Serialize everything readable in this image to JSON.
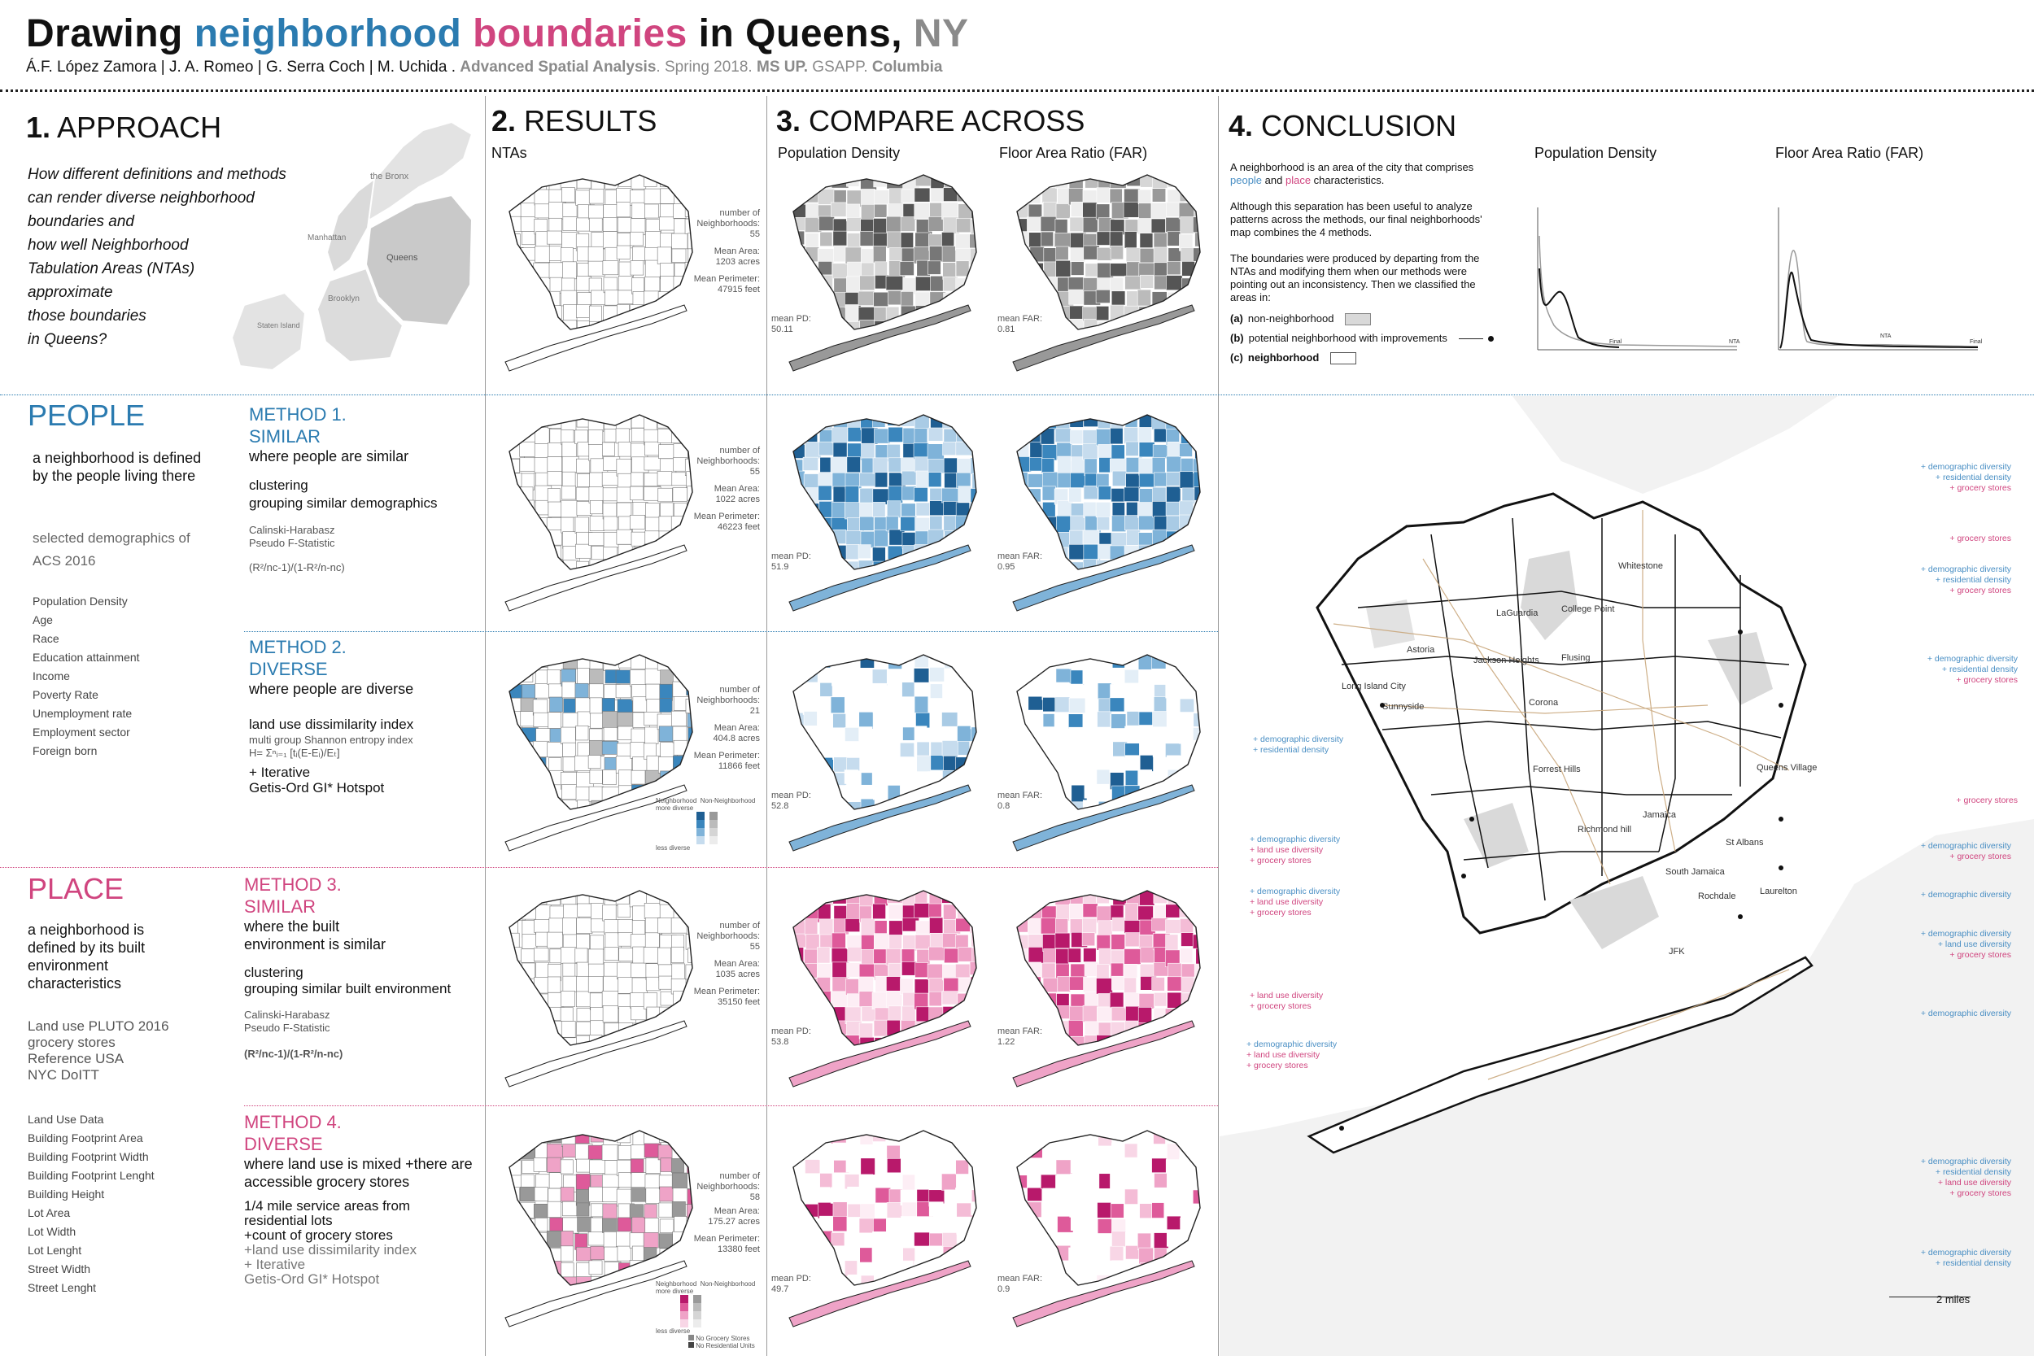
{
  "header": {
    "title_part1": "Drawing ",
    "title_neighborhood": "neighborhood",
    "title_boundaries": "boundaries",
    "title_part2": " in Queens, ",
    "title_ny": "NY",
    "authors": "Á.F. López Zamora | J. A. Romeo | G. Serra Coch | M. Uchida .",
    "course": "Advanced Spatial Analysis",
    "term": ". Spring 2018.",
    "program": "MS UP.",
    "school": "GSAPP.",
    "university": "Columbia"
  },
  "colors": {
    "blue": "#2b7bb0",
    "pink": "#d0457f",
    "gray": "#8a8a8a"
  },
  "approach": {
    "number": "1.",
    "title": "APPROACH",
    "question_lines": [
      "How different definitions and methods",
      "can render diverse neighborhood",
      "boundaries and",
      "how well Neighborhood",
      "Tabulation Areas (NTAs)",
      "approximate",
      "those boundaries",
      "in Queens?"
    ],
    "borough_labels": {
      "bronx": "the Bronx",
      "manhattan": "Manhattan",
      "queens": "Queens",
      "brooklyn": "Brooklyn",
      "staten_island": "Staten Island"
    }
  },
  "results": {
    "number": "2.",
    "title": "RESULTS",
    "subtitle": "NTAs"
  },
  "compare": {
    "number": "3.",
    "title": "COMPARE ACROSS",
    "col1": "Population Density",
    "col2": "Floor Area Ratio (FAR)"
  },
  "conclusion": {
    "number": "4.",
    "title": "CONCLUSION",
    "p1_a": "A neighborhood is an area of the city that comprises ",
    "p1_people": "people",
    "p1_and": " and ",
    "p1_place": "place",
    "p1_b": " characteristics.",
    "p2": "Although this separation has been useful to analyze patterns across the methods, our final neighborhoods' map combines the 4 methods.",
    "p3": "The boundaries were produced by departing from the NTAs and modifying them when our methods were pointing out an inconsistency. Then we classified the areas in:",
    "legend_a_key": "(a)",
    "legend_a": "non-neighborhood",
    "legend_b_key": "(b)",
    "legend_b": "potential neighborhood with improvements",
    "legend_c_key": "(c)",
    "legend_c": "neighborhood",
    "chart_pd_title": "Population Density",
    "chart_far_title": "Floor Area Ratio (FAR)",
    "chart_label_final": "Final",
    "chart_label_nta": "NTA",
    "scale": "2 miles"
  },
  "people": {
    "title": "PEOPLE",
    "desc": "a neighborhood is defined by the people living there",
    "source": "selected demographics of ACS 2016",
    "variables": [
      "Population Density",
      "Age",
      "Race",
      "Education attainment",
      "Income",
      "Poverty Rate",
      "Unemployment rate",
      "Employment sector",
      "Foreign born"
    ]
  },
  "method1": {
    "title": "METHOD 1.",
    "subtitle": "SIMILAR",
    "desc": "where people are similar",
    "technique": "clustering",
    "technique2": "grouping similar demographics",
    "stat1": "Calinski-Harabasz",
    "stat2": "Pseudo F-Statistic",
    "formula": "(R²/nc-1)/(1-R²/n-nc)"
  },
  "method2": {
    "title": "METHOD 2.",
    "subtitle": "DIVERSE",
    "desc": "where people are diverse",
    "technique": "land use dissimilarity index",
    "technique2": "multi group Shannon entropy index",
    "formula": "H= Σⁿᵢ₌₁ [tᵢ(E-Eᵢ)/Eₜ]",
    "iter": "+ Iterative",
    "hotspot": "Getis-Ord GI* Hotspot",
    "legend_nb": "Neighborhood",
    "legend_non": "Non-Neighborhood",
    "legend_more": "more diverse",
    "legend_less": "less diverse"
  },
  "place": {
    "title": "PLACE",
    "desc": "a neighborhood is defined by its built environment characteristics",
    "sources": [
      "Land use PLUTO 2016",
      "grocery stores",
      "Reference USA",
      "NYC DoITT"
    ],
    "variables": [
      "Land Use Data",
      "Building Footprint Area",
      "Building Footprint Width",
      "Building Footprint Lenght",
      "Building Height",
      "Lot Area",
      "Lot Width",
      "Lot Lenght",
      "Street Width",
      "Street Lenght"
    ]
  },
  "method3": {
    "title": "METHOD 3.",
    "subtitle": "SIMILAR",
    "desc": "where the built environment is similar",
    "technique": "clustering",
    "technique2": "grouping similar built environment",
    "stat1": "Calinski-Harabasz",
    "stat2": "Pseudo F-Statistic",
    "formula": "(R²/nc-1)/(1-R²/n-nc)"
  },
  "method4": {
    "title": "METHOD 4.",
    "subtitle": "DIVERSE",
    "desc": "where land use is mixed +there are accessible grocery stores",
    "line1": "1/4 mile service areas from residential lots",
    "line2": "+count of grocery stores",
    "line3": "+land use dissimilarity index",
    "line4": "+ Iterative",
    "line5": "Getis-Ord GI* Hotspot",
    "legend_nb": "Neighborhood",
    "legend_non": "Non-Neighborhood",
    "legend_more": "more diverse",
    "legend_less": "less diverse",
    "legend_nogrocery": "No Grocery Stores",
    "legend_nores": "No Residential Units"
  },
  "stats": {
    "nta": {
      "n_label": "number of Neighborhoods:",
      "n": "55",
      "area_label": "Mean Area:",
      "area": "1203 acres",
      "per_label": "Mean Perimeter:",
      "per": "47915 feet",
      "pd_label": "mean PD:",
      "pd": "50.11",
      "far_label": "mean FAR:",
      "far": "0.81"
    },
    "m1": {
      "n_label": "number of Neighborhoods:",
      "n": "55",
      "area_label": "Mean Area:",
      "area": "1022 acres",
      "per_label": "Mean Perimeter:",
      "per": "46223 feet",
      "pd_label": "mean PD:",
      "pd": "51.9",
      "far_label": "mean FAR:",
      "far": "0.95"
    },
    "m2": {
      "n_label": "number of Neighborhoods:",
      "n": "21",
      "area_label": "Mean Area:",
      "area": "404.8 acres",
      "per_label": "Mean Perimeter:",
      "per": "11866 feet",
      "pd_label": "mean PD:",
      "pd": "52.8",
      "far_label": "mean FAR:",
      "far": "0.8"
    },
    "m3": {
      "n_label": "number of Neighborhoods:",
      "n": "55",
      "area_label": "Mean Area:",
      "area": "1035 acres",
      "per_label": "Mean Perimeter:",
      "per": "35150 feet",
      "pd_label": "mean PD:",
      "pd": "53.8",
      "far_label": "mean FAR:",
      "far": "1.22"
    },
    "m4": {
      "n_label": "number of Neighborhoods:",
      "n": "58",
      "area_label": "Mean Area:",
      "area": "175.27 acres",
      "per_label": "Mean Perimeter:",
      "per": "13380 feet",
      "pd_label": "mean PD:",
      "pd": "49.7",
      "far_label": "mean FAR:",
      "far": "0.9"
    }
  },
  "final_map": {
    "places": [
      "Whitestone",
      "LaGuardia",
      "College Point",
      "Astoria",
      "Jackson Heights",
      "Flusing",
      "Long Island City",
      "Sunnyside",
      "Corona",
      "Forrest Hills",
      "Queens Village",
      "Richmond hill",
      "Jamaica",
      "St Albans",
      "South Jamaica",
      "Rochdale",
      "Laurelton",
      "JFK"
    ],
    "annotations": {
      "dd": "+ demographic diversity",
      "rd": "+ residential density",
      "gs": "+ grocery stores",
      "ld": "+ land use diversity"
    }
  }
}
